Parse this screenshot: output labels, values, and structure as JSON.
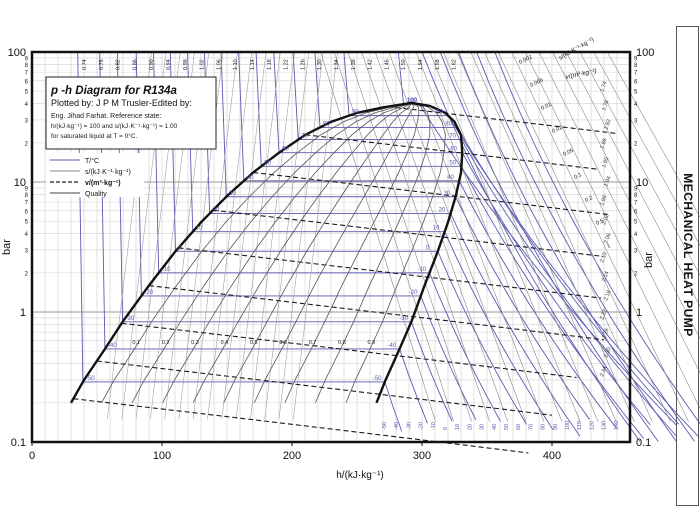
{
  "page": {
    "side_label": "MECHANICAL HEAT PUMP"
  },
  "chart_data": {
    "type": "line",
    "title": "p -h Diagram for R134a",
    "subtitle": "Plotted by: J P M Trusler-Edited by:",
    "credit": "Eng. Jihad Farhat. Reference state:",
    "reference_line1": "h/(kJ·kg⁻¹) = 100 and s/(kJ·K⁻¹·kg⁻¹) = 1.00",
    "reference_line2": "for saturated liquid at T = 0°C.",
    "xlabel": "h/(kJ·kg⁻¹)",
    "ylabel": "bar",
    "ylabel_right": "bar",
    "x_scale": "linear",
    "y_scale": "log",
    "xlim": [
      0,
      460
    ],
    "ylim": [
      0.1,
      100
    ],
    "x_ticks": [
      0,
      100,
      200,
      300,
      400
    ],
    "y_ticks": [
      0.1,
      1,
      10,
      100
    ],
    "y_tick_labels": [
      "0.1",
      "1",
      "10",
      "100"
    ],
    "y_minor_labels": [
      "2",
      "3",
      "4",
      "5",
      "6",
      "7",
      "8",
      "9"
    ],
    "grid": true,
    "legend": {
      "placement": "upper-left",
      "entries": [
        {
          "label": "T/°C",
          "style": "solid",
          "color": "#5a5ab4"
        },
        {
          "label": "s/(kJ·K⁻¹·kg⁻¹)",
          "style": "solid",
          "color": "#888888"
        },
        {
          "label": "v/(m³·kg⁻¹)",
          "style": "dashed",
          "color": "#222222"
        },
        {
          "label": "Quality",
          "style": "solid",
          "color": "#444444"
        }
      ]
    },
    "saturation_dome": {
      "liquid_line": [
        [
          30,
          0.2
        ],
        [
          40,
          0.3
        ],
        [
          55,
          0.5
        ],
        [
          70,
          0.85
        ],
        [
          90,
          1.6
        ],
        [
          110,
          2.9
        ],
        [
          130,
          4.9
        ],
        [
          150,
          7.8
        ],
        [
          170,
          11.8
        ],
        [
          190,
          16.8
        ],
        [
          210,
          23
        ],
        [
          230,
          29
        ],
        [
          250,
          34
        ],
        [
          270,
          37.5
        ],
        [
          292,
          40.6
        ]
      ],
      "vapor_line": [
        [
          265,
          0.2
        ],
        [
          272,
          0.3
        ],
        [
          282,
          0.5
        ],
        [
          292,
          0.85
        ],
        [
          302,
          1.6
        ],
        [
          312,
          2.9
        ],
        [
          320,
          4.9
        ],
        [
          326,
          7.8
        ],
        [
          330,
          11.8
        ],
        [
          331,
          16.8
        ],
        [
          330,
          23
        ],
        [
          325,
          29
        ],
        [
          318,
          34
        ],
        [
          306,
          38.5
        ],
        [
          292,
          40.6
        ]
      ]
    },
    "isotherm_labels_c": [
      "-50",
      "-40",
      "-30",
      "-20",
      "-10",
      "0",
      "10",
      "20",
      "30",
      "40",
      "50",
      "60",
      "70",
      "80",
      "90",
      "100",
      "110",
      "120"
    ],
    "isotherm_top_labels_c": [
      "-50",
      "-40",
      "-30",
      "-20",
      "-10",
      "0",
      "10",
      "20",
      "30",
      "40",
      "50",
      "60",
      "70",
      "80",
      "90",
      "100",
      "110",
      "120",
      "130",
      "140",
      "150"
    ],
    "entropy_top_labels": [
      "0.74",
      "0.78",
      "0.82",
      "0.86",
      "0.90",
      "0.94",
      "0.98",
      "1.02",
      "1.06",
      "1.10",
      "1.14",
      "1.18",
      "1.22",
      "1.26",
      "1.30",
      "1.34",
      "1.38",
      "1.42",
      "1.46",
      "1.50",
      "1.54",
      "1.58",
      "1.62"
    ],
    "quality_labels": [
      "0.1",
      "0.2",
      "0.3",
      "0.4",
      "0.5",
      "0.6",
      "0.7",
      "0.8",
      "0.9"
    ],
    "specific_volume_labels": [
      "0.002",
      "0.005",
      "0.01",
      "0.02",
      "0.05",
      "0.1",
      "0.2",
      "0.5",
      "1"
    ],
    "specific_volume_header": "v/(m³·kg⁻¹)",
    "entropy_header": "s/(kJ·K⁻¹·kg⁻¹)",
    "right_entropy_labels": [
      "1.74",
      "1.78",
      "1.82",
      "1.86",
      "1.90",
      "1.94",
      "1.98",
      "2.02",
      "2.06",
      "2.10",
      "2.14",
      "2.18",
      "2.22",
      "2.26",
      "2.30",
      "2.34"
    ]
  }
}
